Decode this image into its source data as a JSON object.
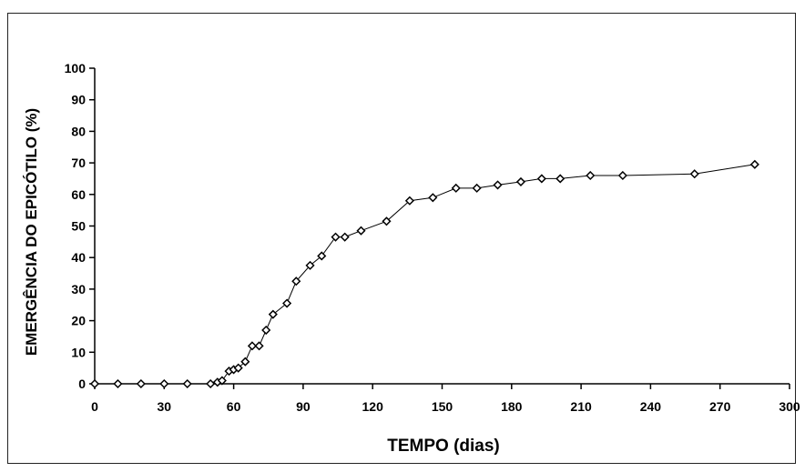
{
  "chart_data": {
    "type": "line",
    "title": "",
    "xlabel": "TEMPO (dias)",
    "ylabel": "EMERGÊNCIA DO EPICÓTILO (%)",
    "xlim": [
      0,
      300
    ],
    "ylim": [
      0,
      100
    ],
    "xticks": [
      0,
      30,
      60,
      90,
      120,
      150,
      180,
      210,
      240,
      270,
      300
    ],
    "yticks": [
      0,
      10,
      20,
      30,
      40,
      50,
      60,
      70,
      80,
      90,
      100
    ],
    "grid": false,
    "legend": "none",
    "marker": "diamond",
    "line_color": "#000000",
    "series": [
      {
        "x": [
          0,
          10,
          20,
          30,
          40,
          50,
          53,
          55,
          58,
          60,
          62,
          65,
          68,
          71,
          74,
          77,
          83,
          87,
          93,
          98,
          104,
          108,
          115,
          126,
          136,
          146,
          156,
          165,
          174,
          184,
          193,
          201,
          214,
          228,
          259,
          285
        ],
        "y": [
          0,
          0,
          0,
          0,
          0,
          0,
          0.5,
          1,
          4,
          4.5,
          5,
          7,
          12,
          12,
          17,
          22,
          25.5,
          32.5,
          37.5,
          40.5,
          46.5,
          46.5,
          48.5,
          51.5,
          58,
          59,
          62,
          62,
          63,
          64,
          65,
          65,
          66,
          66,
          66.5,
          69.5
        ]
      }
    ]
  }
}
